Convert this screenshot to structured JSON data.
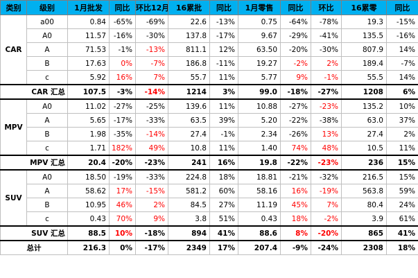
{
  "headers": [
    "类别",
    "级别",
    "1月批发",
    "同比",
    "环比12月",
    "16累批",
    "同比",
    "1月零售",
    "同比",
    "环比",
    "16累零",
    "同比"
  ],
  "colors": {
    "header_bg": "#00b0f0",
    "negative_red": "#ff0000",
    "text": "#000000"
  },
  "sections": [
    {
      "category": "CAR",
      "rows": [
        {
          "level": "a00",
          "cells": [
            {
              "v": "0.84"
            },
            {
              "v": "-65%"
            },
            {
              "v": "-69%"
            },
            {
              "v": "22.6"
            },
            {
              "v": "-13%"
            },
            {
              "v": "0.75"
            },
            {
              "v": "-64%"
            },
            {
              "v": "-78%"
            },
            {
              "v": "19.3"
            },
            {
              "v": "-15%"
            }
          ]
        },
        {
          "level": "A0",
          "cells": [
            {
              "v": "11.57"
            },
            {
              "v": "-16%"
            },
            {
              "v": "-30%"
            },
            {
              "v": "137.8"
            },
            {
              "v": "-17%"
            },
            {
              "v": "9.67"
            },
            {
              "v": "-29%"
            },
            {
              "v": "-41%"
            },
            {
              "v": "135.5"
            },
            {
              "v": "-16%"
            }
          ]
        },
        {
          "level": "A",
          "cells": [
            {
              "v": "71.53"
            },
            {
              "v": "-1%"
            },
            {
              "v": "-13%",
              "red": true
            },
            {
              "v": "811.1"
            },
            {
              "v": "12%"
            },
            {
              "v": "63.50"
            },
            {
              "v": "-20%"
            },
            {
              "v": "-30%"
            },
            {
              "v": "807.9"
            },
            {
              "v": "14%"
            }
          ]
        },
        {
          "level": "B",
          "cells": [
            {
              "v": "17.63"
            },
            {
              "v": "0%",
              "red": true
            },
            {
              "v": "-7%",
              "red": true
            },
            {
              "v": "186.8"
            },
            {
              "v": "-11%"
            },
            {
              "v": "19.27"
            },
            {
              "v": "-2%",
              "red": true
            },
            {
              "v": "2%",
              "red": true
            },
            {
              "v": "189.4"
            },
            {
              "v": "-7%"
            }
          ]
        },
        {
          "level": "c",
          "cells": [
            {
              "v": "5.92"
            },
            {
              "v": "16%",
              "red": true
            },
            {
              "v": "7%",
              "red": true
            },
            {
              "v": "55.7"
            },
            {
              "v": "11%"
            },
            {
              "v": "5.77"
            },
            {
              "v": "9%",
              "red": true
            },
            {
              "v": "-1%",
              "red": true
            },
            {
              "v": "55.5"
            },
            {
              "v": "14%"
            }
          ]
        }
      ],
      "subtotal": {
        "label": "CAR 汇总",
        "cells": [
          {
            "v": "107.5"
          },
          {
            "v": "-3%"
          },
          {
            "v": "-14%",
            "red": true
          },
          {
            "v": "1214"
          },
          {
            "v": "3%"
          },
          {
            "v": "99.0"
          },
          {
            "v": "-18%"
          },
          {
            "v": "-27%"
          },
          {
            "v": "1208"
          },
          {
            "v": "6%"
          }
        ]
      }
    },
    {
      "category": "MPV",
      "rows": [
        {
          "level": "A0",
          "cells": [
            {
              "v": "11.02"
            },
            {
              "v": "-27%"
            },
            {
              "v": "-25%"
            },
            {
              "v": "139.6"
            },
            {
              "v": "11%"
            },
            {
              "v": "10.88"
            },
            {
              "v": "-27%"
            },
            {
              "v": "-23%",
              "red": true
            },
            {
              "v": "135.2"
            },
            {
              "v": "10%"
            }
          ]
        },
        {
          "level": "A",
          "cells": [
            {
              "v": "5.65"
            },
            {
              "v": "-17%"
            },
            {
              "v": "-33%"
            },
            {
              "v": "63.5"
            },
            {
              "v": "39%"
            },
            {
              "v": "5.20"
            },
            {
              "v": "-22%"
            },
            {
              "v": "-38%"
            },
            {
              "v": "63.0"
            },
            {
              "v": "37%"
            }
          ]
        },
        {
          "level": "B",
          "cells": [
            {
              "v": "1.98"
            },
            {
              "v": "-35%"
            },
            {
              "v": "-14%",
              "red": true
            },
            {
              "v": "27.4"
            },
            {
              "v": "-1%"
            },
            {
              "v": "2.34"
            },
            {
              "v": "-26%"
            },
            {
              "v": "13%",
              "red": true
            },
            {
              "v": "27.4"
            },
            {
              "v": "2%"
            }
          ]
        },
        {
          "level": "c",
          "cells": [
            {
              "v": "1.71"
            },
            {
              "v": "182%",
              "red": true
            },
            {
              "v": "49%",
              "red": true
            },
            {
              "v": "10.8"
            },
            {
              "v": "11%"
            },
            {
              "v": "1.40"
            },
            {
              "v": "74%",
              "red": true
            },
            {
              "v": "48%",
              "red": true
            },
            {
              "v": "10.5"
            },
            {
              "v": "11%"
            }
          ]
        }
      ],
      "subtotal": {
        "label": "MPV 汇总",
        "cells": [
          {
            "v": "20.4"
          },
          {
            "v": "-20%"
          },
          {
            "v": "-23%"
          },
          {
            "v": "241"
          },
          {
            "v": "16%"
          },
          {
            "v": "19.8"
          },
          {
            "v": "-22%"
          },
          {
            "v": "-23%",
            "red": true
          },
          {
            "v": "236"
          },
          {
            "v": "15%"
          }
        ]
      }
    },
    {
      "category": "SUV",
      "rows": [
        {
          "level": "A0",
          "cells": [
            {
              "v": "18.50"
            },
            {
              "v": "-19%"
            },
            {
              "v": "-33%"
            },
            {
              "v": "224.8"
            },
            {
              "v": "18%"
            },
            {
              "v": "18.81"
            },
            {
              "v": "-21%"
            },
            {
              "v": "-32%"
            },
            {
              "v": "216.5"
            },
            {
              "v": "15%"
            }
          ]
        },
        {
          "level": "A",
          "cells": [
            {
              "v": "58.62"
            },
            {
              "v": "17%",
              "red": true
            },
            {
              "v": "-15%",
              "red": true
            },
            {
              "v": "581.2"
            },
            {
              "v": "60%"
            },
            {
              "v": "58.16"
            },
            {
              "v": "16%",
              "red": true
            },
            {
              "v": "-19%",
              "red": true
            },
            {
              "v": "563.8"
            },
            {
              "v": "59%"
            }
          ]
        },
        {
          "level": "B",
          "cells": [
            {
              "v": "10.95"
            },
            {
              "v": "46%",
              "red": true
            },
            {
              "v": "2%",
              "red": true
            },
            {
              "v": "84.5"
            },
            {
              "v": "27%"
            },
            {
              "v": "11.19"
            },
            {
              "v": "45%",
              "red": true
            },
            {
              "v": "7%",
              "red": true
            },
            {
              "v": "80.4"
            },
            {
              "v": "24%"
            }
          ]
        },
        {
          "level": "c",
          "cells": [
            {
              "v": "0.43"
            },
            {
              "v": "70%",
              "red": true
            },
            {
              "v": "9%",
              "red": true
            },
            {
              "v": "3.8"
            },
            {
              "v": "51%"
            },
            {
              "v": "0.43"
            },
            {
              "v": "18%",
              "red": true
            },
            {
              "v": "-2%",
              "red": true
            },
            {
              "v": "3.9"
            },
            {
              "v": "61%"
            }
          ]
        }
      ],
      "subtotal": {
        "label": "SUV 汇总",
        "cells": [
          {
            "v": "88.5"
          },
          {
            "v": "10%",
            "red": true
          },
          {
            "v": "-18%"
          },
          {
            "v": "894"
          },
          {
            "v": "41%"
          },
          {
            "v": "88.6"
          },
          {
            "v": "8%",
            "red": true
          },
          {
            "v": "-20%",
            "red": true
          },
          {
            "v": "865"
          },
          {
            "v": "41%"
          }
        ]
      }
    }
  ],
  "total": {
    "label": "总计",
    "cells": [
      {
        "v": "216.3"
      },
      {
        "v": "0%"
      },
      {
        "v": "-17%"
      },
      {
        "v": "2349"
      },
      {
        "v": "17%"
      },
      {
        "v": "207.4"
      },
      {
        "v": "-9%"
      },
      {
        "v": "-24%"
      },
      {
        "v": "2308"
      },
      {
        "v": "18%"
      }
    ]
  }
}
